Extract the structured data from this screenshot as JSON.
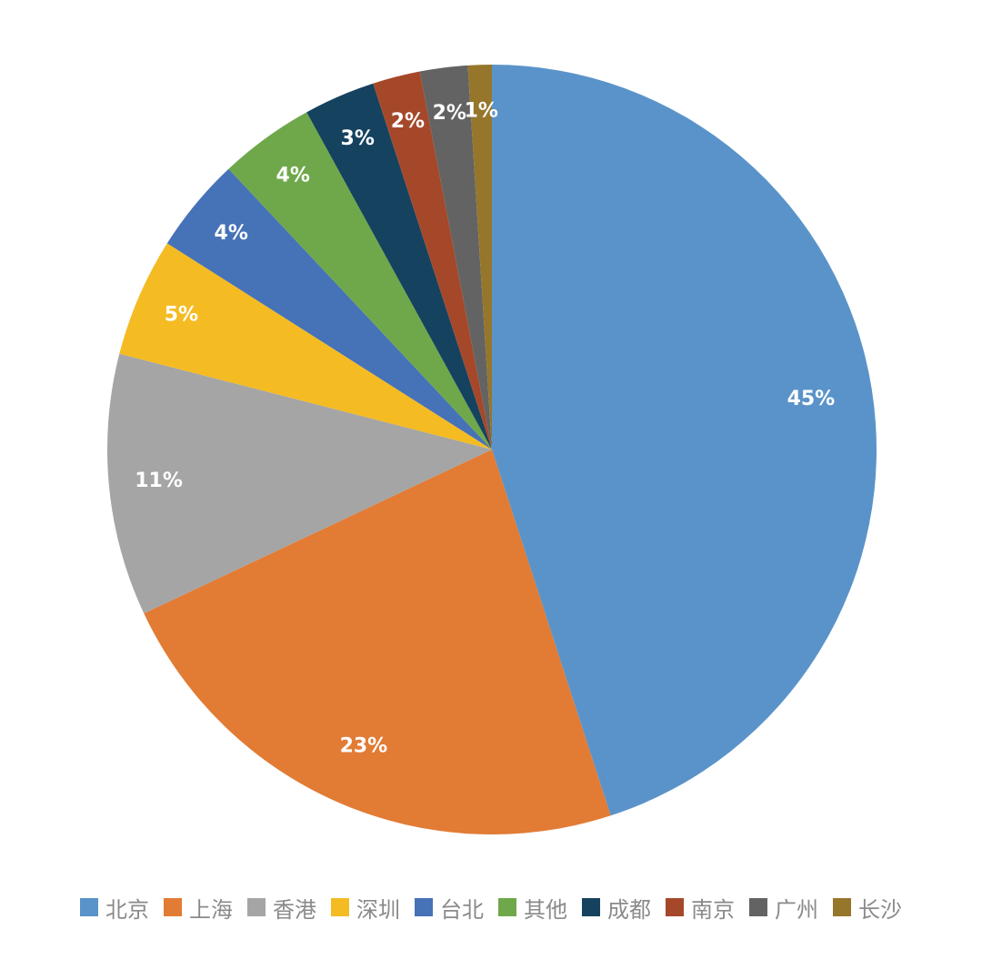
{
  "chart_data": {
    "type": "pie",
    "title": "",
    "categories": [
      "北京",
      "上海",
      "香港",
      "深圳",
      "台北",
      "其他",
      "成都",
      "南京",
      "广州",
      "长沙"
    ],
    "values": [
      45,
      23,
      11,
      5,
      4,
      4,
      3,
      2,
      2,
      1
    ],
    "slice_labels": [
      "45%",
      "23%",
      "11%",
      "5%",
      "4%",
      "4%",
      "3%",
      "2%",
      "2%",
      "1%"
    ],
    "colors": [
      "#5a93c9",
      "#e27b34",
      "#a5a5a5",
      "#f4bb23",
      "#4672b7",
      "#6fa84a",
      "#15425f",
      "#a5482a",
      "#636363",
      "#95762b"
    ],
    "legend_position": "bottom",
    "start_angle": "12 o'clock",
    "direction": "clockwise"
  }
}
